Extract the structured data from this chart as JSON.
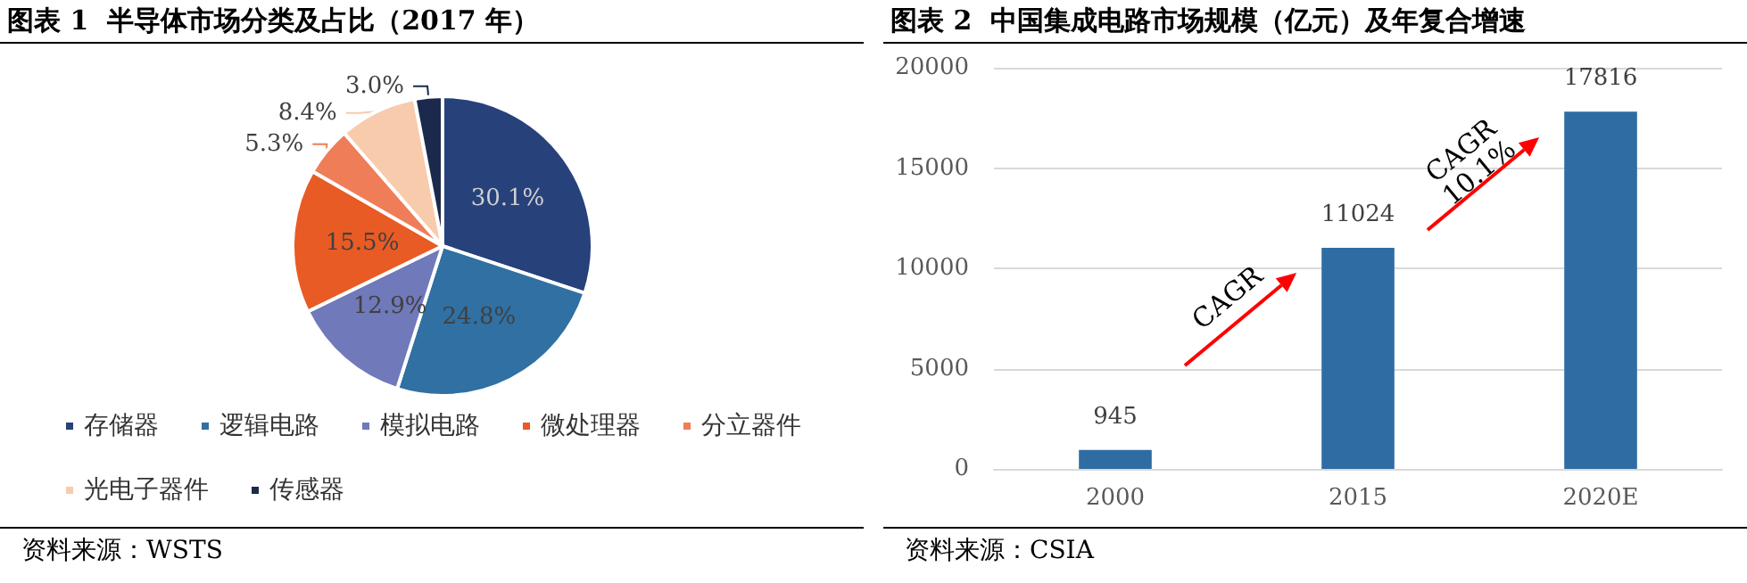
{
  "chart_data": [
    {
      "type": "pie",
      "title": "图表 1  半导体市场分类及占比（2017 年）",
      "categories": [
        "存储器",
        "逻辑电路",
        "模拟电路",
        "微处理器",
        "分立器件",
        "光电子器件",
        "传感器"
      ],
      "values": [
        30.1,
        24.8,
        12.9,
        15.5,
        5.3,
        8.4,
        3.0
      ],
      "value_labels": [
        "30.1%",
        "24.8%",
        "12.9%",
        "15.5%",
        "5.3%",
        "8.4%",
        "3.0%"
      ],
      "colors": [
        "#27417b",
        "#3070a3",
        "#7079b9",
        "#e95b24",
        "#ef7d57",
        "#f8cbad",
        "#1b2a4c"
      ],
      "legend": "bottom",
      "annotations": [
        "资料来源：WSTS"
      ]
    },
    {
      "type": "bar",
      "title": "图表 2  中国集成电路市场规模（亿元）及年复合增速",
      "categories": [
        "2000",
        "2015",
        "2020E"
      ],
      "values": [
        945,
        11024,
        17816
      ],
      "color": "#2f6ca3",
      "ylim": [
        0,
        20000
      ],
      "yticks": [
        0,
        5000,
        10000,
        15000,
        20000
      ],
      "grid": "y",
      "data_labels": true,
      "annotations": [
        "CAGR",
        "CAGR 10.1%",
        "资料来源：CSIA"
      ]
    }
  ]
}
